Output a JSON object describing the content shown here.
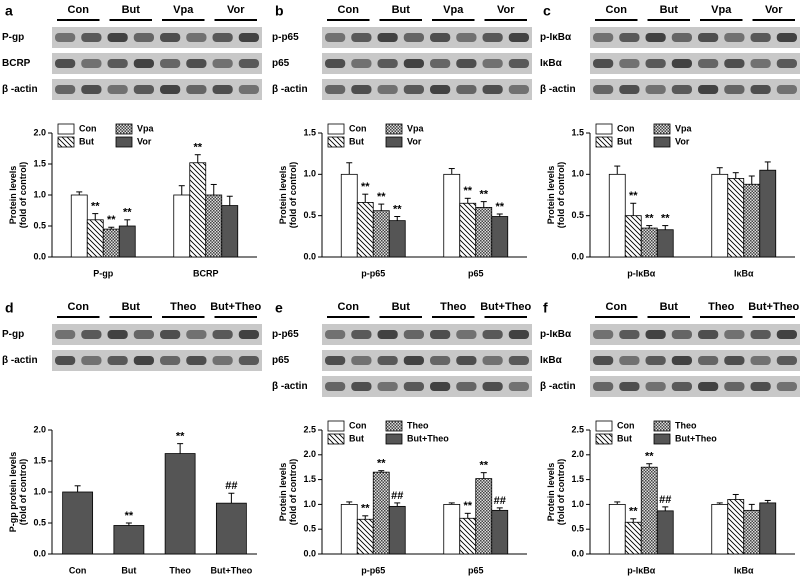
{
  "panels": [
    {
      "label": "a",
      "groups": [
        "Con",
        "But",
        "Vpa",
        "Vor"
      ],
      "rows": [
        "P-gp",
        "BCRP",
        "β -actin"
      ]
    },
    {
      "label": "b",
      "groups": [
        "Con",
        "But",
        "Vpa",
        "Vor"
      ],
      "rows": [
        "p-p65",
        "p65",
        "β -actin"
      ]
    },
    {
      "label": "c",
      "groups": [
        "Con",
        "But",
        "Vpa",
        "Vor"
      ],
      "rows": [
        "p-IκBα",
        "IκBα",
        "β -actin"
      ]
    },
    {
      "label": "d",
      "groups": [
        "Con",
        "But",
        "Theo",
        "But+Theo"
      ],
      "rows": [
        "P-gp",
        "β -actin"
      ]
    },
    {
      "label": "e",
      "groups": [
        "Con",
        "But",
        "Theo",
        "But+Theo"
      ],
      "rows": [
        "p-p65",
        "p65",
        "β -actin"
      ]
    },
    {
      "label": "f",
      "groups": [
        "Con",
        "But",
        "Theo",
        "But+Theo"
      ],
      "rows": [
        "p-IκBα",
        "IκBα",
        "β -actin"
      ]
    }
  ],
  "chart_data": [
    {
      "type": "bar",
      "ylabel": [
        "Protein levels",
        "(fold of control)"
      ],
      "categories": [
        "P-gp",
        "BCRP"
      ],
      "ylim": [
        0,
        2
      ],
      "yticks": [
        {
          "value": 0,
          "label": "0.0"
        },
        0.5,
        {
          "value": 1,
          "label": "1.0"
        },
        1.5,
        {
          "value": 2,
          "label": "2.0"
        }
      ],
      "series": [
        {
          "name": "Con",
          "color": "#ffffff",
          "pattern": "none",
          "values": [
            1.0,
            1.0
          ],
          "errors": [
            0.05,
            0.15
          ],
          "annotations": [
            null,
            null
          ]
        },
        {
          "name": "But",
          "color": "#ffffff",
          "pattern": "diagonal",
          "values": [
            0.6,
            1.52
          ],
          "errors": [
            0.1,
            0.13
          ],
          "annotations": [
            "**",
            "**"
          ]
        },
        {
          "name": "Vpa",
          "color": "#999999",
          "pattern": "crosshatch",
          "values": [
            0.45,
            1.0
          ],
          "errors": [
            0.03,
            0.17
          ],
          "annotations": [
            "**",
            null
          ]
        },
        {
          "name": "Vor",
          "color": "#555555",
          "pattern": "none",
          "values": [
            0.5,
            0.83
          ],
          "errors": [
            0.1,
            0.15
          ],
          "annotations": [
            "**",
            null
          ]
        }
      ]
    },
    {
      "type": "bar",
      "ylabel": [
        "Protein levels",
        "(fold of control)"
      ],
      "categories": [
        "p-p65",
        "p65"
      ],
      "ylim": [
        0,
        1.5
      ],
      "yticks": [
        {
          "value": 0,
          "label": "0.0"
        },
        0.5,
        {
          "value": 1,
          "label": "1.0"
        },
        1.5
      ],
      "series": [
        {
          "name": "Con",
          "color": "#ffffff",
          "pattern": "none",
          "values": [
            1.0,
            1.0
          ],
          "errors": [
            0.14,
            0.07
          ],
          "annotations": [
            null,
            null
          ]
        },
        {
          "name": "But",
          "color": "#ffffff",
          "pattern": "diagonal",
          "values": [
            0.66,
            0.65
          ],
          "errors": [
            0.1,
            0.06
          ],
          "annotations": [
            "**",
            "**"
          ]
        },
        {
          "name": "Vpa",
          "color": "#999999",
          "pattern": "crosshatch",
          "values": [
            0.56,
            0.6
          ],
          "errors": [
            0.08,
            0.07
          ],
          "annotations": [
            "**",
            "**"
          ]
        },
        {
          "name": "Vor",
          "color": "#555555",
          "pattern": "none",
          "values": [
            0.44,
            0.49
          ],
          "errors": [
            0.05,
            0.03
          ],
          "annotations": [
            "**",
            "**"
          ]
        }
      ]
    },
    {
      "type": "bar",
      "ylabel": [
        "Protein levels",
        "(fold of control)"
      ],
      "categories": [
        "p-IκBα",
        "IκBα"
      ],
      "ylim": [
        0,
        1.5
      ],
      "yticks": [
        {
          "value": 0,
          "label": "0.0"
        },
        0.5,
        {
          "value": 1,
          "label": "1.0"
        },
        1.5
      ],
      "series": [
        {
          "name": "Con",
          "color": "#ffffff",
          "pattern": "none",
          "values": [
            1.0,
            1.0
          ],
          "errors": [
            0.1,
            0.08
          ],
          "annotations": [
            null,
            null
          ]
        },
        {
          "name": "But",
          "color": "#ffffff",
          "pattern": "diagonal",
          "values": [
            0.5,
            0.95
          ],
          "errors": [
            0.15,
            0.07
          ],
          "annotations": [
            "**",
            null
          ]
        },
        {
          "name": "Vpa",
          "color": "#999999",
          "pattern": "crosshatch",
          "values": [
            0.35,
            0.88
          ],
          "errors": [
            0.03,
            0.1
          ],
          "annotations": [
            "**",
            null
          ]
        },
        {
          "name": "Vor",
          "color": "#555555",
          "pattern": "none",
          "values": [
            0.33,
            1.05
          ],
          "errors": [
            0.05,
            0.1
          ],
          "annotations": [
            "**",
            null
          ]
        }
      ]
    },
    {
      "type": "bar",
      "ylabel": [
        "P-gp protein levels",
        "(fold of control)"
      ],
      "categories": [
        "Con",
        "But",
        "Theo",
        "But+Theo"
      ],
      "ylim": [
        0,
        2
      ],
      "yticks": [
        {
          "value": 0,
          "label": "0.0"
        },
        0.5,
        {
          "value": 1,
          "label": "1.0"
        },
        1.5,
        {
          "value": 2,
          "label": "2.0"
        }
      ],
      "color": "#555555",
      "values": [
        1.0,
        0.46,
        1.62,
        0.82
      ],
      "errors": [
        0.1,
        0.04,
        0.16,
        0.16
      ],
      "annotations": [
        null,
        "**",
        "**",
        "##"
      ]
    },
    {
      "type": "bar",
      "ylabel": [
        "Protein levels",
        "(fold of control)"
      ],
      "categories": [
        "p-p65",
        "p65"
      ],
      "ylim": [
        0,
        2.5
      ],
      "yticks": [
        {
          "value": 0,
          "label": "0.0"
        },
        0.5,
        {
          "value": 1,
          "label": "1.0"
        },
        1.5,
        {
          "value": 2,
          "label": "2.0"
        },
        2.5
      ],
      "series": [
        {
          "name": "Con",
          "color": "#ffffff",
          "pattern": "none",
          "values": [
            1.0,
            1.0
          ],
          "errors": [
            0.05,
            0.03
          ],
          "annotations": [
            null,
            null
          ]
        },
        {
          "name": "But",
          "color": "#ffffff",
          "pattern": "diagonal",
          "values": [
            0.7,
            0.72
          ],
          "errors": [
            0.07,
            0.1
          ],
          "annotations": [
            "**",
            "**"
          ]
        },
        {
          "name": "Theo",
          "color": "#999999",
          "pattern": "crosshatch",
          "values": [
            1.65,
            1.52
          ],
          "errors": [
            0.03,
            0.12
          ],
          "annotations": [
            "**",
            "**"
          ]
        },
        {
          "name": "But+Theo",
          "color": "#555555",
          "pattern": "none",
          "values": [
            0.96,
            0.88
          ],
          "errors": [
            0.07,
            0.05
          ],
          "annotations": [
            "##",
            "##"
          ]
        }
      ]
    },
    {
      "type": "bar",
      "ylabel": [
        "Protein levels",
        "(fold of control)"
      ],
      "categories": [
        "p-IκBα",
        "IκBα"
      ],
      "ylim": [
        0,
        2.5
      ],
      "yticks": [
        {
          "value": 0,
          "label": "0.0"
        },
        0.5,
        {
          "value": 1,
          "label": "1.0"
        },
        1.5,
        {
          "value": 2,
          "label": "2.0"
        },
        2.5
      ],
      "series": [
        {
          "name": "Con",
          "color": "#ffffff",
          "pattern": "none",
          "values": [
            1.0,
            1.0
          ],
          "errors": [
            0.05,
            0.03
          ],
          "annotations": [
            null,
            null
          ]
        },
        {
          "name": "But",
          "color": "#ffffff",
          "pattern": "diagonal",
          "values": [
            0.64,
            1.1
          ],
          "errors": [
            0.07,
            0.1
          ],
          "annotations": [
            "**",
            null
          ]
        },
        {
          "name": "Theo",
          "color": "#999999",
          "pattern": "crosshatch",
          "values": [
            1.75,
            0.88
          ],
          "errors": [
            0.07,
            0.12
          ],
          "annotations": [
            "**",
            null
          ]
        },
        {
          "name": "But+Theo",
          "color": "#555555",
          "pattern": "none",
          "values": [
            0.87,
            1.03
          ],
          "errors": [
            0.08,
            0.05
          ],
          "annotations": [
            "##",
            null
          ]
        }
      ]
    }
  ]
}
